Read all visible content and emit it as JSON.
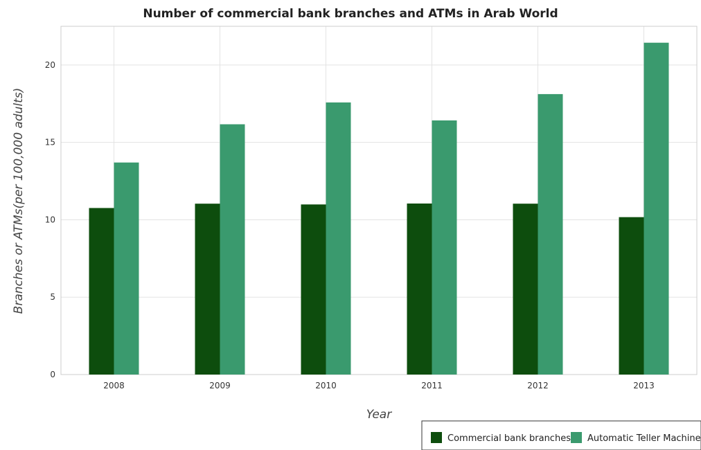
{
  "chart_data": {
    "type": "bar",
    "title": "Number of commercial bank branches and ATMs in Arab World",
    "xlabel": "Year",
    "ylabel": "Branches or ATMs(per 100,000 adults)",
    "categories": [
      "2008",
      "2009",
      "2010",
      "2011",
      "2012",
      "2013"
    ],
    "ylim": [
      0,
      22.5
    ],
    "yticks": [
      0,
      5,
      10,
      15,
      20
    ],
    "grid": true,
    "legend_position": "bottom-right",
    "series": [
      {
        "name": "Commercial bank branches",
        "color": "#0d4d0d",
        "values": [
          10.76,
          11.04,
          10.99,
          11.05,
          11.04,
          10.17
        ]
      },
      {
        "name": "Automatic Teller Machines",
        "color": "#3a9a6e",
        "values": [
          13.7,
          16.17,
          17.58,
          16.42,
          18.12,
          21.44
        ]
      }
    ]
  }
}
